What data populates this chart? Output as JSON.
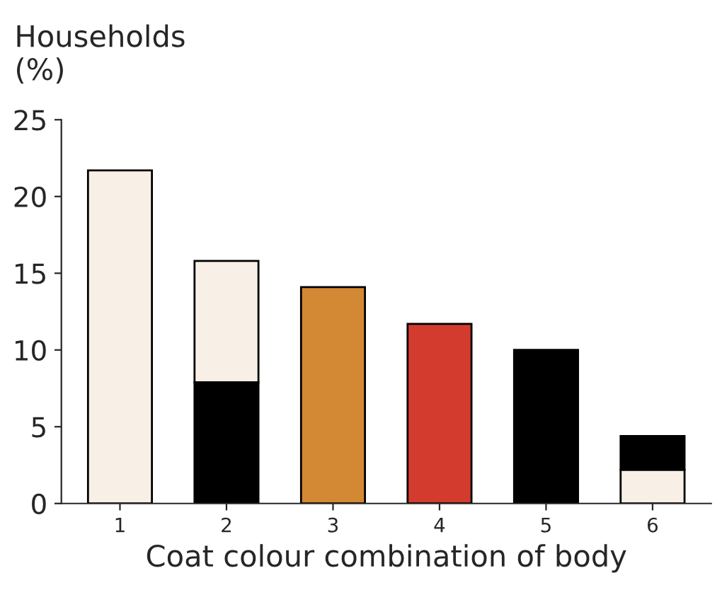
{
  "chart_data": {
    "type": "bar",
    "stacked": true,
    "ylabel": "Households\n(%)",
    "xlabel": "Coat colour combination of body",
    "categories": [
      "1",
      "2",
      "3",
      "4",
      "5",
      "6"
    ],
    "series": [
      {
        "colors": [
          "#f8f0e6",
          "#000000",
          "#d38833",
          "#d43b2f",
          "#000000",
          "#f8f0e6"
        ],
        "values": [
          21.7,
          7.9,
          14.1,
          11.7,
          10.0,
          2.2
        ]
      },
      {
        "colors": [
          "#f8f0e6",
          "#f8f0e6",
          "#f8f0e6",
          "#f8f0e6",
          "#f8f0e6",
          "#000000"
        ],
        "values": [
          null,
          7.9,
          null,
          null,
          null,
          2.2
        ]
      }
    ],
    "ylim": [
      0,
      25
    ],
    "yticks": [
      0,
      5,
      10,
      15,
      20,
      25
    ],
    "grid": false,
    "legend": false
  }
}
